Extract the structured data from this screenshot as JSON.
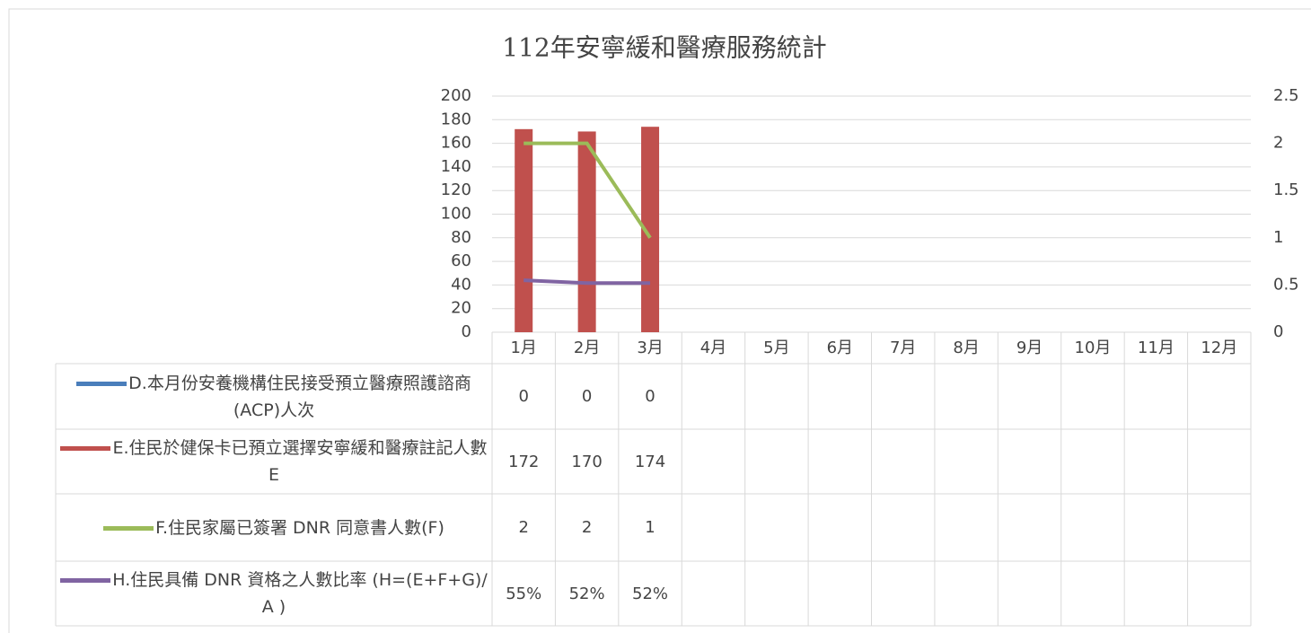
{
  "chart_data": {
    "type": "bar-line",
    "title": "112年安寧緩和醫療服務統計",
    "categories": [
      "1月",
      "2月",
      "3月",
      "4月",
      "5月",
      "6月",
      "7月",
      "8月",
      "9月",
      "10月",
      "11月",
      "12月"
    ],
    "ylim": [
      0,
      200
    ],
    "yticks": [
      0,
      20,
      40,
      60,
      80,
      100,
      120,
      140,
      160,
      180,
      200
    ],
    "y2lim": [
      0,
      2.5
    ],
    "y2ticks": [
      0,
      0.5,
      1,
      1.5,
      2,
      2.5
    ],
    "grid": true,
    "legend": "bottom",
    "series": [
      {
        "name": "D.本月份安養機構住民接受預立醫療照護諮商(ACP)人次",
        "type": "bar",
        "color": "#4a7ebb",
        "values": [
          0,
          0,
          0,
          null,
          null,
          null,
          null,
          null,
          null,
          null,
          null,
          null
        ]
      },
      {
        "name": "E.住民於健保卡已預立選擇安寧緩和醫療註記人數E",
        "type": "bar",
        "color": "#c0504d",
        "values": [
          172,
          170,
          174,
          null,
          null,
          null,
          null,
          null,
          null,
          null,
          null,
          null
        ]
      },
      {
        "name": "F.住民家屬已簽署 DNR 同意書人數(F)",
        "type": "line",
        "axis": "y2",
        "color": "#9bbb59",
        "values": [
          2,
          2,
          1,
          null,
          null,
          null,
          null,
          null,
          null,
          null,
          null,
          null
        ]
      },
      {
        "name": "H.住民具備 DNR 資格之人數比率 (H=(E+F+G)/ A )",
        "type": "line",
        "axis": "y2",
        "color": "#8064a2",
        "values": [
          0.55,
          0.52,
          0.52,
          null,
          null,
          null,
          null,
          null,
          null,
          null,
          null,
          null
        ],
        "value_labels": [
          "55%",
          "52%",
          "52%",
          null,
          null,
          null,
          null,
          null,
          null,
          null,
          null,
          null
        ]
      }
    ]
  }
}
